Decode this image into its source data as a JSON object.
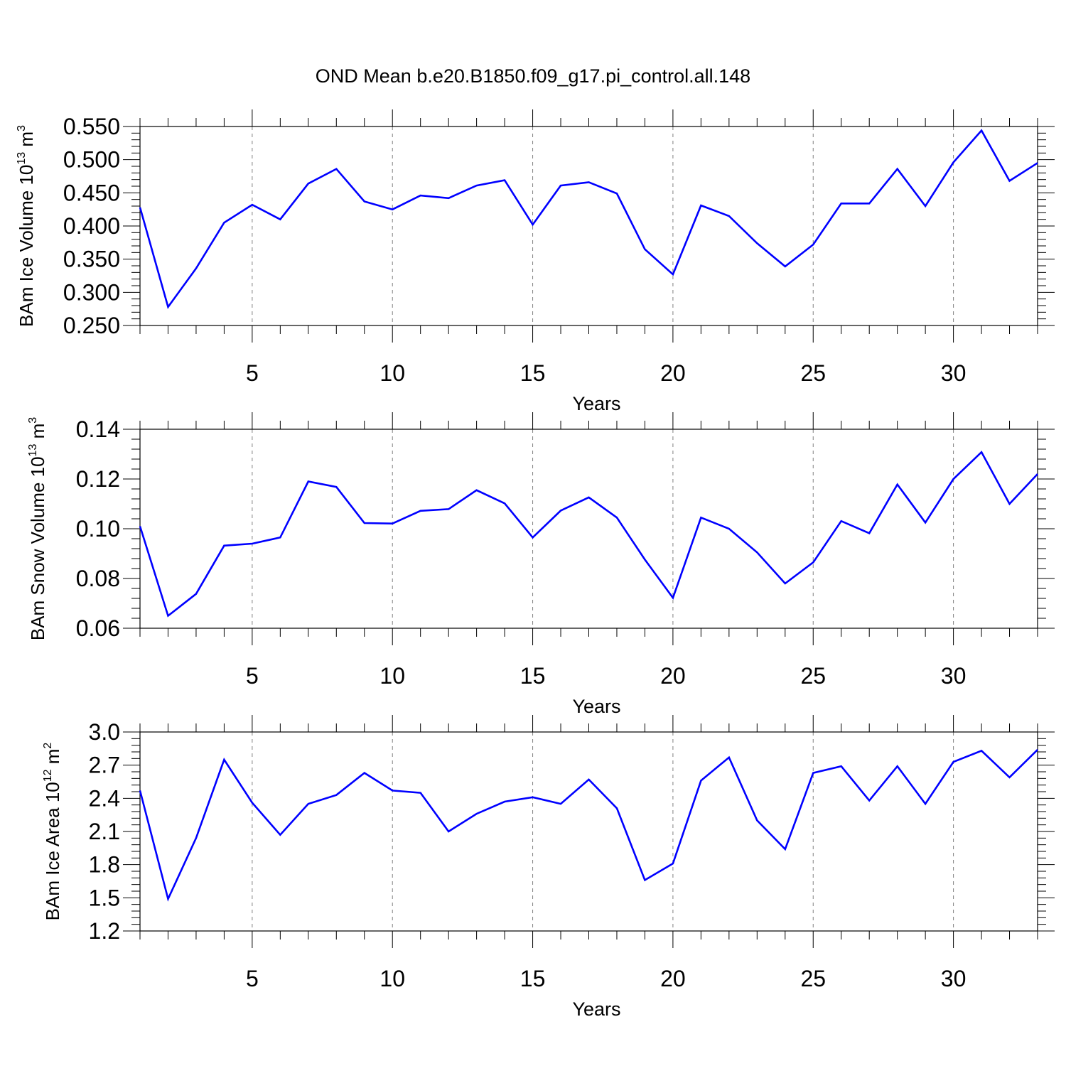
{
  "title": "OND Mean b.e20.B1850.f09_g17.pi_control.all.148",
  "colors": {
    "series": "#0000ff",
    "axis": "#000000",
    "grid": "#808080"
  },
  "chart_data": [
    {
      "type": "line",
      "ylabel_base": "BAm Ice Volume 10",
      "ylabel_exp": "13",
      "ylabel_unit": " m",
      "ylabel_unit_exp": "3",
      "xlabel": "Years",
      "xlim": [
        1,
        33
      ],
      "ylim": [
        0.25,
        0.55
      ],
      "yticks": [
        0.25,
        0.3,
        0.35,
        0.4,
        0.45,
        0.5,
        0.55
      ],
      "ytick_labels": [
        "0.250",
        "0.300",
        "0.350",
        "0.400",
        "0.450",
        "0.500",
        "0.550"
      ],
      "xticks": [
        5,
        10,
        15,
        20,
        25,
        30
      ],
      "xtick_labels": [
        "5",
        "10",
        "15",
        "20",
        "25",
        "30"
      ],
      "grid": "vertical dashed at major x ticks",
      "x": [
        1,
        2,
        3,
        4,
        5,
        6,
        7,
        8,
        9,
        10,
        11,
        12,
        13,
        14,
        15,
        16,
        17,
        18,
        19,
        20,
        21,
        22,
        23,
        24,
        25,
        26,
        27,
        28,
        29,
        30,
        31,
        32,
        33
      ],
      "values": [
        0.428,
        0.278,
        0.336,
        0.405,
        0.432,
        0.41,
        0.464,
        0.486,
        0.437,
        0.425,
        0.446,
        0.442,
        0.461,
        0.469,
        0.402,
        0.461,
        0.466,
        0.449,
        0.365,
        0.327,
        0.431,
        0.415,
        0.374,
        0.339,
        0.372,
        0.434,
        0.434,
        0.486,
        0.43,
        0.496,
        0.544,
        0.468,
        0.495
      ]
    },
    {
      "type": "line",
      "ylabel_base": "BAm Snow Volume 10",
      "ylabel_exp": "13",
      "ylabel_unit": " m",
      "ylabel_unit_exp": "3",
      "xlabel": "Years",
      "xlim": [
        1,
        33
      ],
      "ylim": [
        0.06,
        0.14
      ],
      "yticks": [
        0.06,
        0.08,
        0.1,
        0.12,
        0.14
      ],
      "ytick_labels": [
        "0.06",
        "0.08",
        "0.10",
        "0.12",
        "0.14"
      ],
      "xticks": [
        5,
        10,
        15,
        20,
        25,
        30
      ],
      "xtick_labels": [
        "5",
        "10",
        "15",
        "20",
        "25",
        "30"
      ],
      "grid": "vertical dashed at major x ticks",
      "x": [
        1,
        2,
        3,
        4,
        5,
        6,
        7,
        8,
        9,
        10,
        11,
        12,
        13,
        14,
        15,
        16,
        17,
        18,
        19,
        20,
        21,
        22,
        23,
        24,
        25,
        26,
        27,
        28,
        29,
        30,
        31,
        32,
        33
      ],
      "values": [
        0.101,
        0.065,
        0.0738,
        0.0932,
        0.094,
        0.0965,
        0.119,
        0.1168,
        0.1023,
        0.1021,
        0.1072,
        0.1079,
        0.1155,
        0.1102,
        0.0965,
        0.1073,
        0.1126,
        0.1045,
        0.0876,
        0.0722,
        0.1045,
        0.1,
        0.0905,
        0.078,
        0.0865,
        0.1031,
        0.0982,
        0.1178,
        0.1025,
        0.12,
        0.1308,
        0.11,
        0.122
      ]
    },
    {
      "type": "line",
      "ylabel_base": "BAm Ice Area 10",
      "ylabel_exp": "12",
      "ylabel_unit": " m",
      "ylabel_unit_exp": "2",
      "xlabel": "Years",
      "xlim": [
        1,
        33
      ],
      "ylim": [
        1.2,
        3.0
      ],
      "yticks": [
        1.2,
        1.5,
        1.8,
        2.1,
        2.4,
        2.7,
        3.0
      ],
      "ytick_labels": [
        "1.2",
        "1.5",
        "1.8",
        "2.1",
        "2.4",
        "2.7",
        "3.0"
      ],
      "xticks": [
        5,
        10,
        15,
        20,
        25,
        30
      ],
      "xtick_labels": [
        "5",
        "10",
        "15",
        "20",
        "25",
        "30"
      ],
      "grid": "vertical dashed at major x ticks",
      "x": [
        1,
        2,
        3,
        4,
        5,
        6,
        7,
        8,
        9,
        10,
        11,
        12,
        13,
        14,
        15,
        16,
        17,
        18,
        19,
        20,
        21,
        22,
        23,
        24,
        25,
        26,
        27,
        28,
        29,
        30,
        31,
        32,
        33
      ],
      "values": [
        2.47,
        1.49,
        2.04,
        2.75,
        2.36,
        2.07,
        2.35,
        2.43,
        2.63,
        2.47,
        2.45,
        2.1,
        2.26,
        2.37,
        2.41,
        2.35,
        2.57,
        2.31,
        1.66,
        1.81,
        2.56,
        2.77,
        2.2,
        1.94,
        2.63,
        2.69,
        2.38,
        2.69,
        2.35,
        2.73,
        2.83,
        2.59,
        2.84
      ]
    }
  ]
}
